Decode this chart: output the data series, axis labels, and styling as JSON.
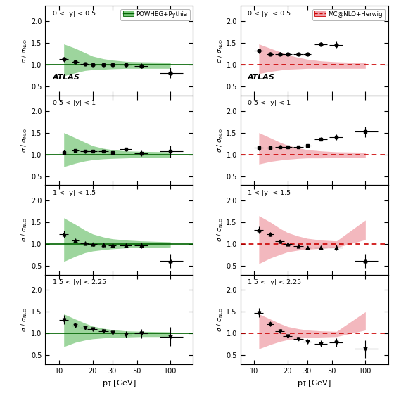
{
  "pt_centers": [
    11,
    14,
    17,
    20,
    25,
    30,
    40,
    55,
    100
  ],
  "pt_xerr_low": [
    1,
    1,
    1.5,
    2,
    2.5,
    2.5,
    5,
    7.5,
    20
  ],
  "pt_xerr_high": [
    1,
    1,
    1.5,
    2,
    2.5,
    2.5,
    5,
    7.5,
    30
  ],
  "powheg_bands": [
    {
      "lo": [
        0.75,
        0.82,
        0.87,
        0.89,
        0.9,
        0.91,
        0.92,
        0.92,
        0.92
      ],
      "hi": [
        1.48,
        1.38,
        1.28,
        1.2,
        1.14,
        1.11,
        1.08,
        1.07,
        1.06
      ]
    },
    {
      "lo": [
        0.72,
        0.8,
        0.85,
        0.88,
        0.9,
        0.91,
        0.92,
        0.93,
        0.93
      ],
      "hi": [
        1.5,
        1.38,
        1.28,
        1.2,
        1.14,
        1.11,
        1.08,
        1.07,
        1.06
      ]
    },
    {
      "lo": [
        0.6,
        0.72,
        0.8,
        0.84,
        0.87,
        0.89,
        0.91,
        0.92,
        0.93
      ],
      "hi": [
        1.6,
        1.45,
        1.32,
        1.23,
        1.16,
        1.12,
        1.09,
        1.07,
        1.05
      ]
    },
    {
      "lo": [
        0.7,
        0.8,
        0.85,
        0.88,
        0.9,
        0.91,
        0.92,
        0.93,
        0.93
      ],
      "hi": [
        1.45,
        1.33,
        1.24,
        1.17,
        1.12,
        1.09,
        1.06,
        1.05,
        1.04
      ]
    }
  ],
  "mcnlo_bands": [
    {
      "lo": [
        0.8,
        0.85,
        0.88,
        0.9,
        0.91,
        0.92,
        0.92,
        0.92,
        0.92
      ],
      "hi": [
        1.48,
        1.38,
        1.3,
        1.23,
        1.17,
        1.13,
        1.09,
        1.07,
        1.05
      ]
    },
    {
      "lo": [
        0.78,
        0.84,
        0.87,
        0.89,
        0.91,
        0.92,
        0.92,
        0.93,
        0.93
      ],
      "hi": [
        1.5,
        1.38,
        1.28,
        1.21,
        1.15,
        1.11,
        1.08,
        1.06,
        1.05
      ]
    },
    {
      "lo": [
        0.55,
        0.68,
        0.76,
        0.82,
        0.86,
        0.88,
        0.9,
        0.92,
        1.1
      ],
      "hi": [
        1.65,
        1.5,
        1.36,
        1.26,
        1.18,
        1.13,
        1.09,
        1.07,
        1.55
      ]
    },
    {
      "lo": [
        0.65,
        0.75,
        0.82,
        0.86,
        0.89,
        0.91,
        0.92,
        0.93,
        1.08
      ],
      "hi": [
        1.45,
        1.33,
        1.23,
        1.16,
        1.11,
        1.08,
        1.06,
        1.05,
        1.5
      ]
    }
  ],
  "rapidity_labels": [
    "0 < |y| < 0.5",
    "0.5 < |y| < 1",
    "1 < |y| < 1.5",
    "1.5 < |y| < 2.25"
  ],
  "markers": [
    "o",
    "s",
    "^",
    "v"
  ],
  "powheg_data": [
    [
      1.13,
      1.07,
      1.02,
      1.01,
      1.01,
      1.01,
      1.0,
      0.98,
      0.82
    ],
    [
      1.05,
      1.09,
      1.07,
      1.07,
      1.07,
      1.05,
      1.12,
      1.03,
      1.07
    ],
    [
      1.22,
      1.08,
      1.02,
      1.0,
      0.98,
      0.97,
      0.97,
      0.97,
      0.62
    ],
    [
      1.32,
      1.19,
      1.13,
      1.1,
      1.06,
      1.02,
      0.98,
      1.0,
      0.93
    ]
  ],
  "powheg_yerr": [
    [
      0.06,
      0.04,
      0.03,
      0.03,
      0.03,
      0.03,
      0.04,
      0.05,
      0.12
    ],
    [
      0.06,
      0.04,
      0.04,
      0.03,
      0.03,
      0.03,
      0.04,
      0.06,
      0.14
    ],
    [
      0.08,
      0.05,
      0.04,
      0.04,
      0.04,
      0.04,
      0.05,
      0.07,
      0.16
    ],
    [
      0.1,
      0.06,
      0.05,
      0.04,
      0.04,
      0.05,
      0.07,
      0.1,
      0.22
    ]
  ],
  "mcnlo_data": [
    [
      1.32,
      1.25,
      1.25,
      1.24,
      1.25,
      1.24,
      1.48,
      1.46,
      null
    ],
    [
      1.15,
      1.15,
      1.18,
      1.18,
      1.18,
      1.2,
      1.35,
      1.4,
      1.52
    ],
    [
      1.32,
      1.22,
      1.06,
      1.0,
      0.96,
      0.92,
      0.92,
      0.92,
      0.62
    ],
    [
      1.48,
      1.22,
      1.05,
      0.95,
      0.88,
      0.82,
      0.77,
      0.8,
      0.65
    ]
  ],
  "mcnlo_yerr": [
    [
      0.06,
      0.04,
      0.04,
      0.03,
      0.03,
      0.03,
      0.04,
      0.07,
      0.0
    ],
    [
      0.06,
      0.04,
      0.04,
      0.03,
      0.03,
      0.03,
      0.04,
      0.06,
      0.12
    ],
    [
      0.08,
      0.05,
      0.04,
      0.04,
      0.04,
      0.04,
      0.05,
      0.07,
      0.16
    ],
    [
      0.1,
      0.06,
      0.05,
      0.04,
      0.04,
      0.05,
      0.07,
      0.1,
      0.2
    ]
  ],
  "powheg_fill_color": "#7dc87d",
  "powheg_line_color": "#006400",
  "mcnlo_fill_color": "#f0a0a8",
  "mcnlo_line_color": "#cc0000",
  "ylim": [
    0.3,
    2.35
  ],
  "yticks": [
    0.5,
    1.0,
    1.5,
    2.0
  ],
  "xlabel": "p$_\\mathrm{T}$ [GeV]"
}
